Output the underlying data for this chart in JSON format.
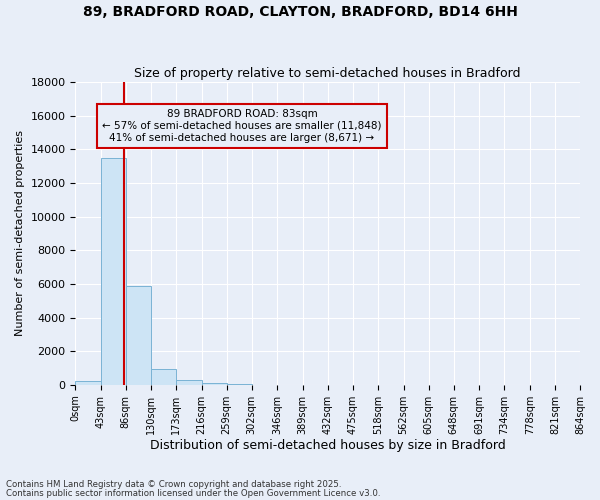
{
  "title1": "89, BRADFORD ROAD, CLAYTON, BRADFORD, BD14 6HH",
  "title2": "Size of property relative to semi-detached houses in Bradford",
  "xlabel": "Distribution of semi-detached houses by size in Bradford",
  "ylabel": "Number of semi-detached properties",
  "annotation_title": "89 BRADFORD ROAD: 83sqm",
  "annotation_line2": "← 57% of semi-detached houses are smaller (11,848)",
  "annotation_line3": "41% of semi-detached houses are larger (8,671) →",
  "footnote1": "Contains HM Land Registry data © Crown copyright and database right 2025.",
  "footnote2": "Contains public sector information licensed under the Open Government Licence v3.0.",
  "property_size_sqm": 83,
  "bin_edges": [
    0,
    43,
    86,
    130,
    173,
    216,
    259,
    302,
    346,
    389,
    432,
    475,
    518,
    562,
    605,
    648,
    691,
    734,
    778,
    821,
    864
  ],
  "bin_counts": [
    200,
    13500,
    5900,
    950,
    300,
    130,
    80,
    0,
    0,
    0,
    0,
    0,
    0,
    0,
    0,
    0,
    0,
    0,
    0,
    0
  ],
  "bar_color": "#cde4f5",
  "bar_edge_color": "#7ab3d4",
  "vline_color": "#cc0000",
  "annotation_box_color": "#cc0000",
  "background_color": "#e8eef8",
  "plot_bg_color": "#e8eef8",
  "ylim": [
    0,
    18000
  ],
  "yticks": [
    0,
    2000,
    4000,
    6000,
    8000,
    10000,
    12000,
    14000,
    16000,
    18000
  ],
  "tick_labels": [
    "0sqm",
    "43sqm",
    "86sqm",
    "130sqm",
    "173sqm",
    "216sqm",
    "259sqm",
    "302sqm",
    "346sqm",
    "389sqm",
    "432sqm",
    "475sqm",
    "518sqm",
    "562sqm",
    "605sqm",
    "648sqm",
    "691sqm",
    "734sqm",
    "778sqm",
    "821sqm",
    "864sqm"
  ]
}
